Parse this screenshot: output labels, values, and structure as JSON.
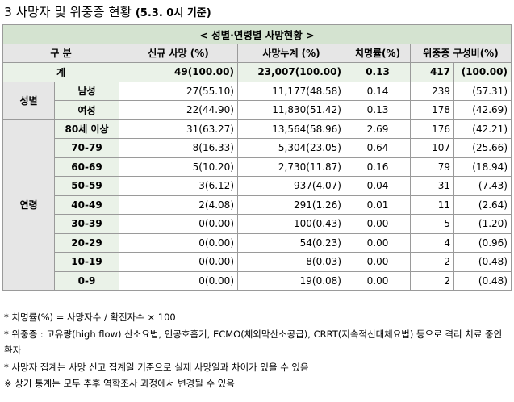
{
  "title": {
    "main": "3 사망자 및 위중증 현황",
    "date": "(5.3. 0시 기준)"
  },
  "table": {
    "caption": "< 성별·연령별 사망현황 >",
    "headers": {
      "group": "구 분",
      "new_deaths": "신규 사망      (%)",
      "cum_deaths": "사망누계      (%)",
      "fatality": "치명률(%)",
      "critical": "위중증    구성비(%)"
    },
    "total": {
      "label": "계",
      "new": "49(100.00)",
      "cum": "23,007(100.00)",
      "fatality": "0.13",
      "critical_n": "417",
      "critical_pct": "(100.00)"
    },
    "sex_label": "성별",
    "sex_rows": [
      {
        "label": "남성",
        "new": "27(55.10)",
        "cum": "11,177(48.58)",
        "fatality": "0.14",
        "critical_n": "239",
        "critical_pct": "(57.31)"
      },
      {
        "label": "여성",
        "new": "22(44.90)",
        "cum": "11,830(51.42)",
        "fatality": "0.13",
        "critical_n": "178",
        "critical_pct": "(42.69)"
      }
    ],
    "age_label": "연령",
    "age_rows": [
      {
        "label": "80세 이상",
        "new": "31(63.27)",
        "cum": "13,564(58.96)",
        "fatality": "2.69",
        "critical_n": "176",
        "critical_pct": "(42.21)"
      },
      {
        "label": "70-79",
        "new": "8(16.33)",
        "cum": "5,304(23.05)",
        "fatality": "0.64",
        "critical_n": "107",
        "critical_pct": "(25.66)"
      },
      {
        "label": "60-69",
        "new": "5(10.20)",
        "cum": "2,730(11.87)",
        "fatality": "0.16",
        "critical_n": "79",
        "critical_pct": "(18.94)"
      },
      {
        "label": "50-59",
        "new": "3(6.12)",
        "cum": "937(4.07)",
        "fatality": "0.04",
        "critical_n": "31",
        "critical_pct": "(7.43)"
      },
      {
        "label": "40-49",
        "new": "2(4.08)",
        "cum": "291(1.26)",
        "fatality": "0.01",
        "critical_n": "11",
        "critical_pct": "(2.64)"
      },
      {
        "label": "30-39",
        "new": "0(0.00)",
        "cum": "100(0.43)",
        "fatality": "0.00",
        "critical_n": "5",
        "critical_pct": "(1.20)"
      },
      {
        "label": "20-29",
        "new": "0(0.00)",
        "cum": "54(0.23)",
        "fatality": "0.00",
        "critical_n": "4",
        "critical_pct": "(0.96)"
      },
      {
        "label": "10-19",
        "new": "0(0.00)",
        "cum": "8(0.03)",
        "fatality": "0.00",
        "critical_n": "2",
        "critical_pct": "(0.48)"
      },
      {
        "label": "0-9",
        "new": "0(0.00)",
        "cum": "19(0.08)",
        "fatality": "0.00",
        "critical_n": "2",
        "critical_pct": "(0.48)"
      }
    ]
  },
  "notes": [
    "* 치명률(%) = 사망자수 / 확진자수 × 100",
    "* 위중증 : 고유량(high flow) 산소요법, 인공호흡기, ECMO(체외막산소공급), CRRT(지속적신대체요법) 등으로 격리 치료 중인 환자",
    "* 사망자 집계는 사망 신고 집계일 기준으로 실제 사망일과 차이가 있을 수 있음",
    "※ 상기 통계는 모두 추후 역학조사 과정에서 변경될 수 있음"
  ]
}
